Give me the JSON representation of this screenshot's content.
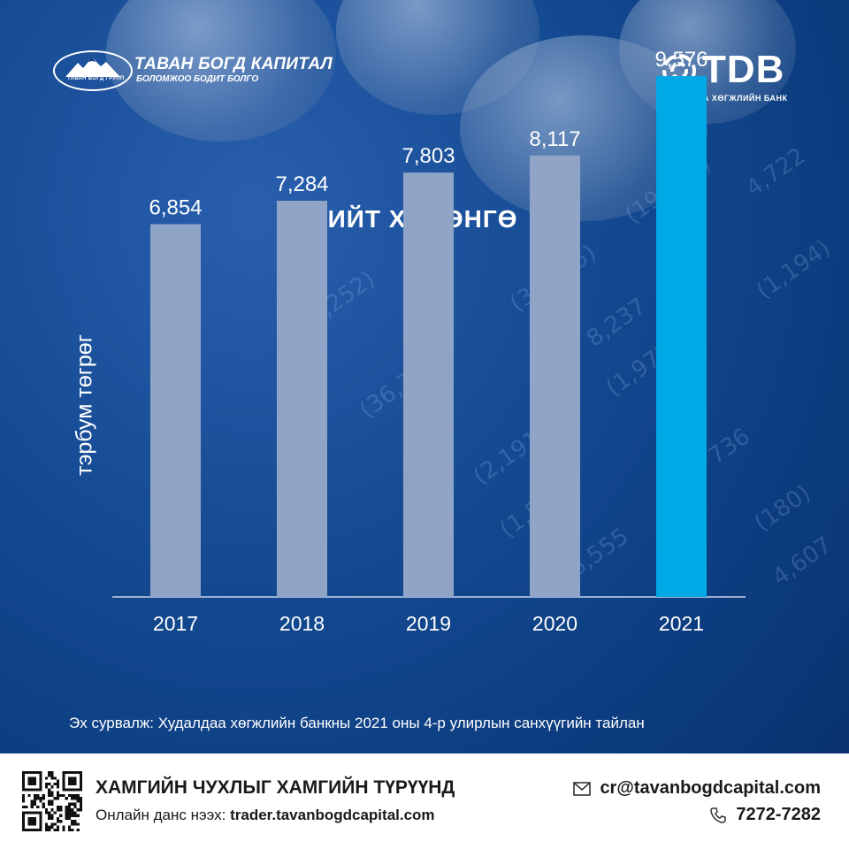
{
  "brand_left": {
    "name": "ТАВАН БОГД КАПИТАЛ",
    "slogan": "БОЛОМЖОО БОДИТ БОЛГО",
    "emblem_text": "ТАВАН БОГД ГРУПП"
  },
  "brand_right": {
    "name": "TDB",
    "subtitle": "ХУДАЛДАА ХӨГЖЛИЙН БАНК"
  },
  "chart_data": {
    "type": "bar",
    "title": "НИЙТ ХӨРӨНГӨ",
    "ylabel": "тэрбум төгрөг",
    "xlabel": "",
    "categories": [
      "2017",
      "2018",
      "2019",
      "2020",
      "2021"
    ],
    "values": [
      6854,
      7284,
      7803,
      8117,
      9576
    ],
    "value_labels": [
      "6,854",
      "7,284",
      "7,803",
      "8,117",
      "9,576"
    ],
    "ylim": [
      0,
      10000
    ],
    "grid": false,
    "colors": {
      "default": "#8fa4c6",
      "highlight": "#00a8e6"
    },
    "highlight_category": "2021"
  },
  "source": "Эх сурвалж: Худалдаа хөгжлийн банкны 2021 оны 4-р улирлын санхүүгийн  тайлан",
  "footer": {
    "slogan": "ХАМГИЙН ЧУХЛЫГ ХАМГИЙН ТҮРҮҮНД",
    "online_label": "Онлайн данс нээх:",
    "online_url": "trader.tavanbogdcapital.com",
    "email": "cr@tavanbogdcapital.com",
    "phone": "7272-7282",
    "icons": [
      "qr-code",
      "mail-icon",
      "phone-icon"
    ]
  }
}
